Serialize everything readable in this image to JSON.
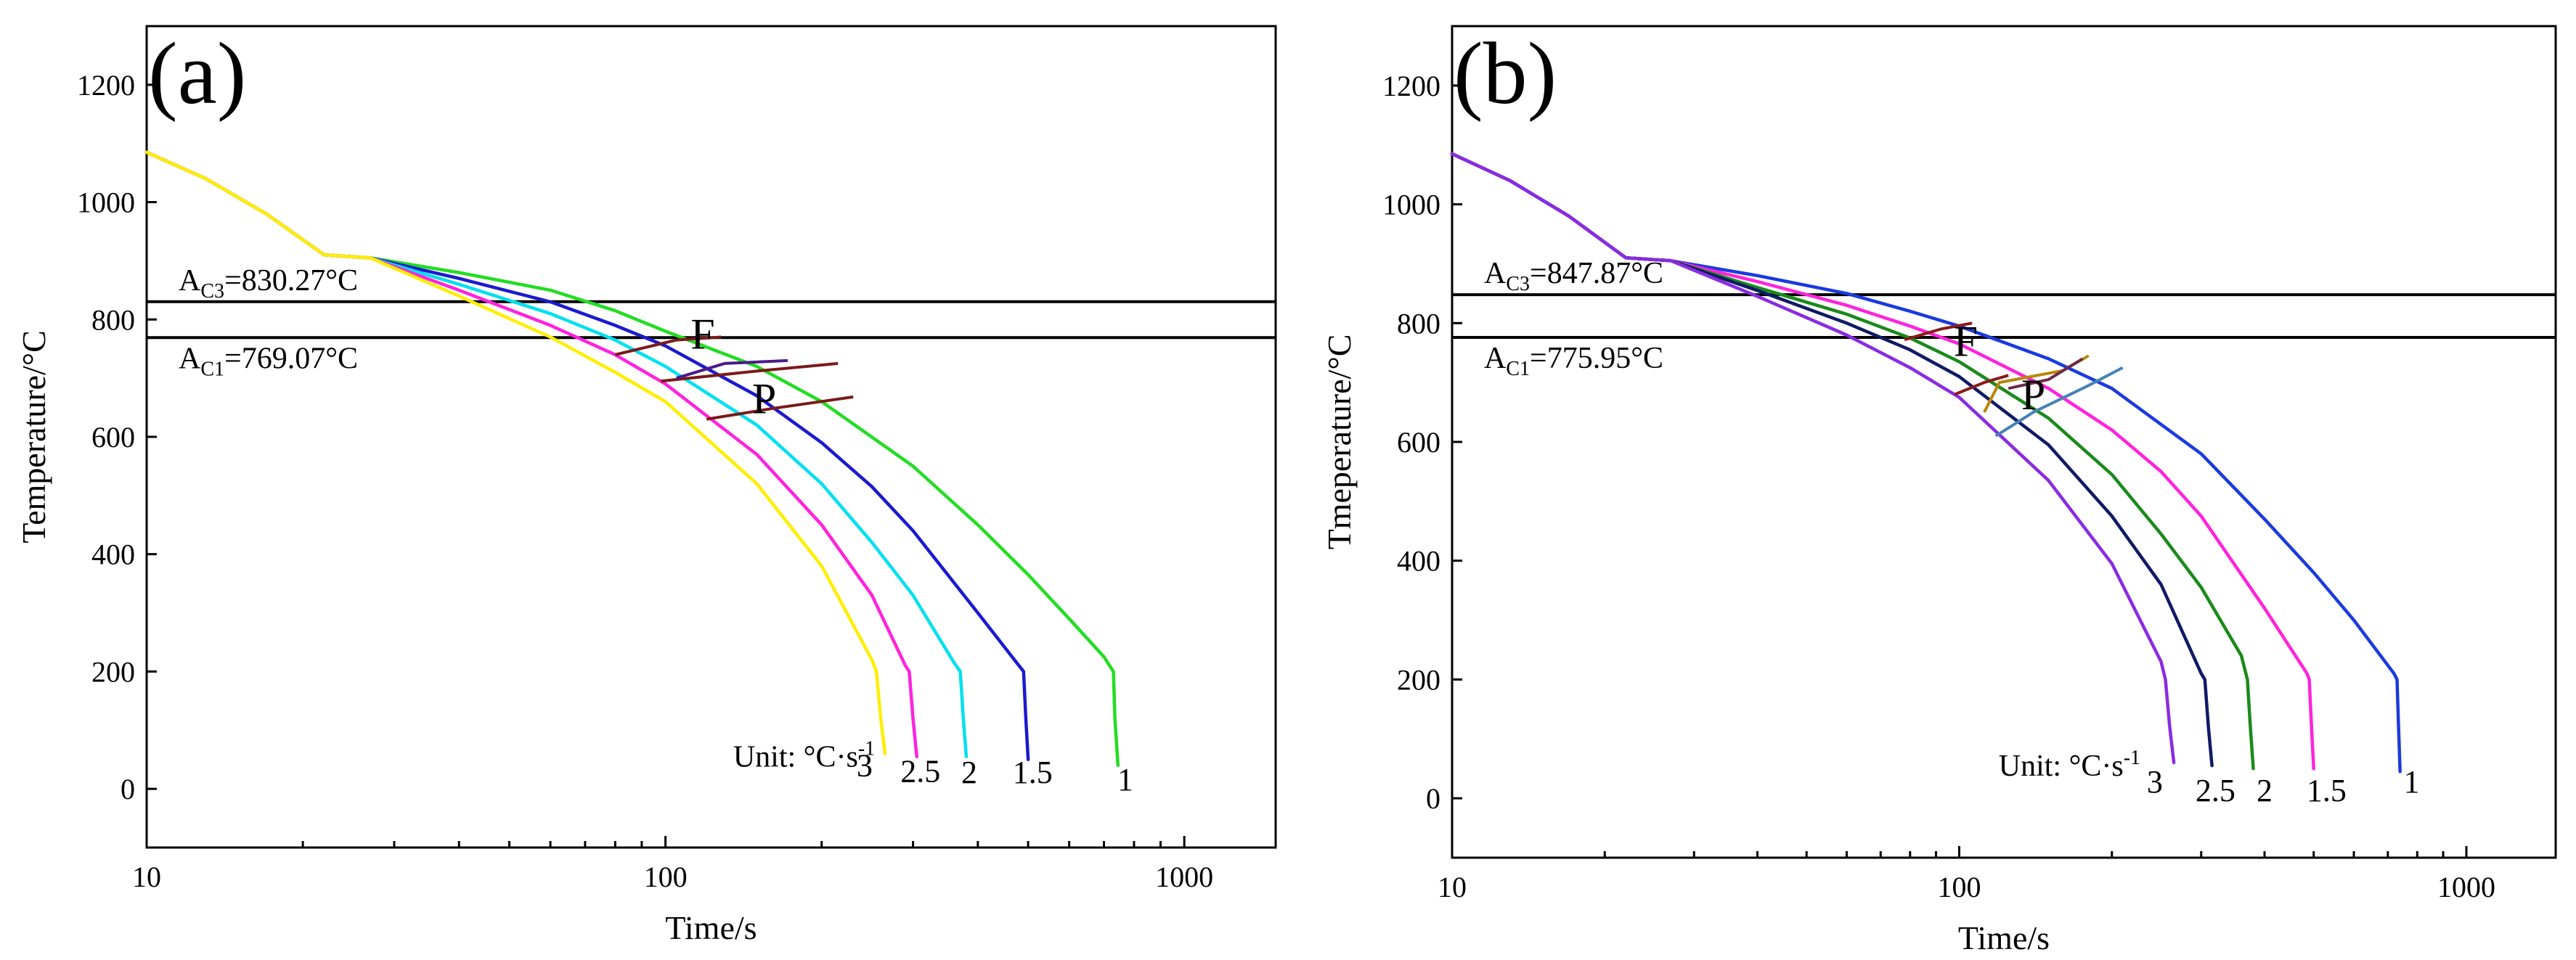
{
  "chart_data": [
    {
      "type": "line",
      "panel_label": "(a)",
      "xlabel": "Time/s",
      "ylabel": "Temperature/°C",
      "xscale": "log",
      "xlim": [
        10,
        1500
      ],
      "ylim": [
        -100,
        1300
      ],
      "xticks": [
        10,
        100,
        1000
      ],
      "xtick_labels": [
        "10",
        "100",
        "1000"
      ],
      "yticks": [
        0,
        200,
        400,
        600,
        800,
        1000,
        1200
      ],
      "ytick_labels": [
        "0",
        "200",
        "400",
        "600",
        "800",
        "1000",
        "1200"
      ],
      "hlines": [
        {
          "name": "Ac3",
          "value": 830.27,
          "label": "=830.27°C",
          "main": "A",
          "sub": "C3"
        },
        {
          "name": "Ac1",
          "value": 769.07,
          "label": "=769.07°C",
          "main": "A",
          "sub": "C1"
        }
      ],
      "unit_label": "Unit: °C·s",
      "unit_sup": "-1",
      "region_labels": [
        {
          "text": "F",
          "x": 118,
          "y": 750
        },
        {
          "text": "P",
          "x": 155,
          "y": 640
        }
      ],
      "series": [
        {
          "name": "1",
          "color": "#22dd22",
          "x": [
            10,
            13,
            17,
            22,
            27,
            40,
            60,
            80,
            100,
            150,
            200,
            300,
            400,
            500,
            600,
            700,
            730,
            735,
            745
          ],
          "y": [
            1085,
            1040,
            980,
            910,
            905,
            880,
            850,
            815,
            780,
            720,
            660,
            550,
            450,
            365,
            290,
            225,
            200,
            120,
            40
          ]
        },
        {
          "name": "1.5",
          "color": "#1a1ad0",
          "x": [
            10,
            13,
            17,
            22,
            27,
            40,
            60,
            80,
            100,
            150,
            200,
            250,
            300,
            400,
            480,
            490,
            495,
            500
          ],
          "y": [
            1085,
            1040,
            980,
            910,
            905,
            870,
            830,
            790,
            755,
            670,
            590,
            515,
            440,
            300,
            210,
            200,
            120,
            50
          ]
        },
        {
          "name": "2",
          "color": "#00e0f0",
          "x": [
            10,
            13,
            17,
            22,
            27,
            40,
            60,
            80,
            100,
            150,
            200,
            250,
            300,
            360,
            370,
            375,
            380
          ],
          "y": [
            1085,
            1040,
            980,
            910,
            905,
            860,
            810,
            765,
            720,
            620,
            520,
            420,
            330,
            215,
            200,
            120,
            55
          ]
        },
        {
          "name": "2.5",
          "color": "#ff22dd",
          "x": [
            10,
            13,
            17,
            22,
            27,
            40,
            60,
            80,
            100,
            150,
            200,
            250,
            290,
            295,
            300,
            305
          ],
          "y": [
            1085,
            1040,
            980,
            910,
            905,
            850,
            790,
            740,
            690,
            570,
            450,
            330,
            210,
            200,
            120,
            55
          ]
        },
        {
          "name": "3",
          "color": "#ffee00",
          "x": [
            10,
            13,
            17,
            22,
            27,
            40,
            60,
            80,
            100,
            150,
            200,
            250,
            255,
            260,
            265
          ],
          "y": [
            1085,
            1040,
            980,
            910,
            905,
            840,
            770,
            710,
            660,
            520,
            380,
            220,
            200,
            120,
            60
          ]
        }
      ],
      "boundaries": [
        {
          "color": "#7a1a1a",
          "x": [
            80,
            105,
            128
          ],
          "y": [
            740,
            765,
            770
          ]
        },
        {
          "color": "#7a1a1a",
          "x": [
            98,
            150,
            215
          ],
          "y": [
            695,
            712,
            725
          ]
        },
        {
          "color": "#7a1a1a",
          "x": [
            120,
            160,
            230
          ],
          "y": [
            630,
            648,
            668
          ]
        },
        {
          "color": "#4b1a8a",
          "x": [
            105,
            130,
            172
          ],
          "y": [
            700,
            725,
            730
          ]
        }
      ],
      "rate_labels": [
        {
          "text": "3",
          "x": 242,
          "y": 22
        },
        {
          "text": "2.5",
          "x": 310,
          "y": 12
        },
        {
          "text": "2",
          "x": 385,
          "y": 10
        },
        {
          "text": "1.5",
          "x": 510,
          "y": 10
        },
        {
          "text": "1",
          "x": 770,
          "y": -2
        }
      ]
    },
    {
      "type": "line",
      "panel_label": "(b)",
      "xlabel": "Time/s",
      "ylabel": "Tmeperature/°C",
      "xscale": "log",
      "xlim": [
        10,
        1500
      ],
      "ylim": [
        -100,
        1300
      ],
      "xticks": [
        10,
        100,
        1000
      ],
      "xtick_labels": [
        "10",
        "100",
        "1000"
      ],
      "yticks": [
        0,
        200,
        400,
        600,
        800,
        1000,
        1200
      ],
      "ytick_labels": [
        "0",
        "200",
        "400",
        "600",
        "800",
        "1000",
        "1200"
      ],
      "hlines": [
        {
          "name": "Ac3",
          "value": 847.87,
          "label": "=847.87°C",
          "main": "A",
          "sub": "C3"
        },
        {
          "name": "Ac1",
          "value": 775.95,
          "label": "=775.95°C",
          "main": "A",
          "sub": "C1"
        }
      ],
      "unit_label": "Unit: °C·s",
      "unit_sup": "-1",
      "region_labels": [
        {
          "text": "F",
          "x": 103,
          "y": 745
        },
        {
          "text": "P",
          "x": 140,
          "y": 655
        }
      ],
      "series": [
        {
          "name": "1",
          "color": "#1a3ae0",
          "x": [
            10,
            13,
            17,
            22,
            27,
            40,
            60,
            80,
            100,
            150,
            200,
            300,
            400,
            500,
            600,
            720,
            730,
            735,
            740
          ],
          "y": [
            1085,
            1040,
            980,
            910,
            905,
            880,
            850,
            820,
            795,
            740,
            690,
            580,
            470,
            380,
            300,
            210,
            200,
            120,
            45
          ]
        },
        {
          "name": "1.5",
          "color": "#ff22dd",
          "x": [
            10,
            13,
            17,
            22,
            27,
            40,
            60,
            80,
            100,
            150,
            200,
            250,
            300,
            400,
            485,
            490,
            495,
            500
          ],
          "y": [
            1085,
            1040,
            980,
            910,
            905,
            870,
            830,
            795,
            765,
            690,
            620,
            550,
            475,
            320,
            210,
            200,
            120,
            50
          ]
        },
        {
          "name": "2",
          "color": "#1a8a1a",
          "x": [
            10,
            13,
            17,
            22,
            27,
            40,
            60,
            80,
            100,
            150,
            200,
            250,
            300,
            360,
            370,
            375,
            380
          ],
          "y": [
            1085,
            1040,
            980,
            910,
            905,
            860,
            815,
            775,
            735,
            640,
            545,
            445,
            355,
            240,
            200,
            120,
            50
          ]
        },
        {
          "name": "2.5",
          "color": "#0f1a66",
          "x": [
            10,
            13,
            17,
            22,
            27,
            40,
            60,
            80,
            100,
            150,
            200,
            250,
            300,
            305,
            310,
            315
          ],
          "y": [
            1085,
            1040,
            980,
            910,
            905,
            855,
            800,
            755,
            710,
            595,
            475,
            360,
            210,
            200,
            120,
            55
          ]
        },
        {
          "name": "3",
          "color": "#8a2be2",
          "x": [
            10,
            13,
            17,
            22,
            27,
            40,
            60,
            80,
            100,
            150,
            200,
            250,
            255,
            260,
            265
          ],
          "y": [
            1085,
            1040,
            980,
            910,
            905,
            845,
            780,
            725,
            675,
            535,
            395,
            230,
            200,
            120,
            60
          ]
        }
      ],
      "boundaries": [
        {
          "color": "#8b1a1a",
          "x": [
            78,
            92,
            106
          ],
          "y": [
            772,
            790,
            800
          ]
        },
        {
          "color": "#8b1a1a",
          "x": [
            98,
            112,
            125
          ],
          "y": [
            680,
            700,
            712
          ]
        },
        {
          "color": "#b8860b",
          "x": [
            112,
            120,
            160,
            180
          ],
          "y": [
            650,
            700,
            720,
            745
          ]
        },
        {
          "color": "#4682b4",
          "x": [
            118,
            140,
            180,
            210
          ],
          "y": [
            610,
            650,
            695,
            725
          ]
        },
        {
          "color": "#6b2a4a",
          "x": [
            125,
            150,
            175
          ],
          "y": [
            690,
            705,
            740
          ]
        }
      ],
      "rate_labels": [
        {
          "text": "3",
          "x": 243,
          "y": 10
        },
        {
          "text": "2.5",
          "x": 320,
          "y": -5
        },
        {
          "text": "2",
          "x": 400,
          "y": -5
        },
        {
          "text": "1.5",
          "x": 530,
          "y": -5
        },
        {
          "text": "1",
          "x": 780,
          "y": 10
        }
      ]
    }
  ]
}
